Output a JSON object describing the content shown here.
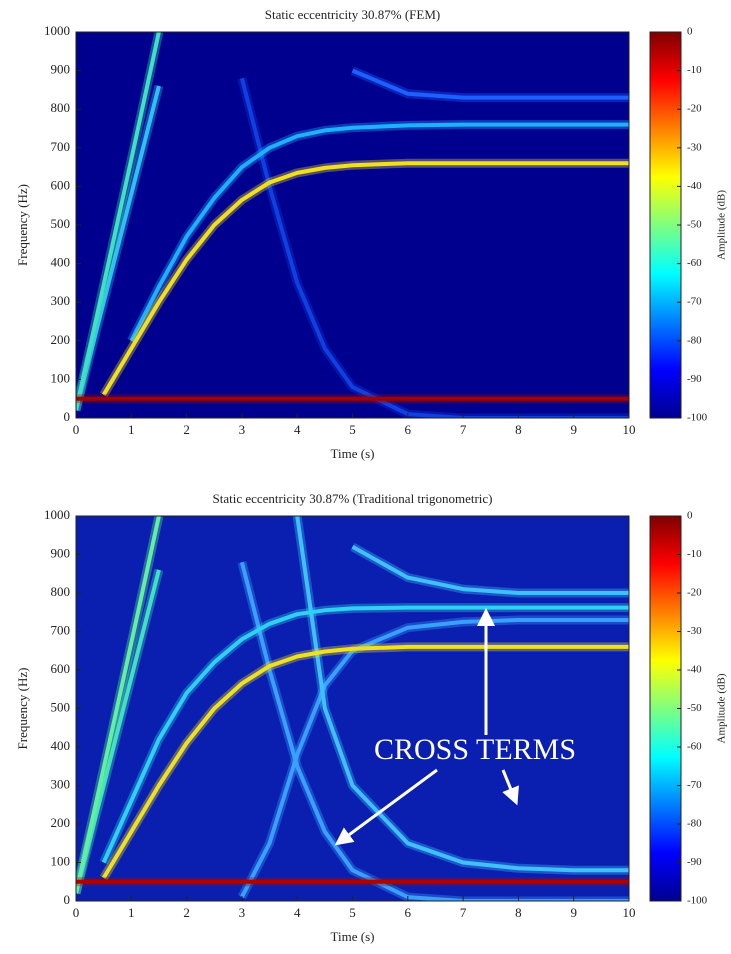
{
  "chart_data": [
    {
      "type": "spectrogram",
      "title": "Static eccentricity 30.87% (FEM)",
      "x_label": "Time (s)",
      "y_label": "Frequency (Hz)",
      "xlim": [
        0,
        10
      ],
      "xticks": [
        0,
        1,
        2,
        3,
        4,
        5,
        6,
        7,
        8,
        9,
        10
      ],
      "ylim": [
        0,
        1000
      ],
      "yticks": [
        0,
        100,
        200,
        300,
        400,
        500,
        600,
        700,
        800,
        900,
        1000
      ],
      "background": "#00008f",
      "colorbar": {
        "label": "Amplitude (dB)",
        "lim": [
          -100,
          0
        ],
        "ticks": [
          0,
          -10,
          -20,
          -30,
          -40,
          -50,
          -60,
          -70,
          -80,
          -90,
          -100
        ]
      },
      "x": [
        0,
        0.5,
        1,
        1.5,
        2,
        2.5,
        3,
        3.5,
        4,
        4.5,
        5,
        6,
        7,
        8,
        9,
        10
      ],
      "series": [
        {
          "color": "#1040e0",
          "values": [
            null,
            null,
            null,
            null,
            null,
            null,
            880,
            600,
            350,
            180,
            80,
            10,
            0,
            0,
            0,
            0
          ]
        },
        {
          "color": "#1e60ff",
          "values": [
            null,
            null,
            null,
            null,
            null,
            null,
            null,
            null,
            null,
            null,
            900,
            840,
            830,
            830,
            830,
            830
          ]
        },
        {
          "color": "#30c0f0",
          "values": [
            20,
            300,
            580,
            860,
            null,
            null,
            null,
            null,
            null,
            null,
            null,
            null,
            null,
            null,
            null,
            null
          ]
        },
        {
          "color": "#40e0c0",
          "values": [
            20,
            345,
            670,
            1000,
            null,
            null,
            null,
            null,
            null,
            null,
            null,
            null,
            null,
            null,
            null,
            null
          ]
        },
        {
          "color": "#20b0ff",
          "values": [
            null,
            null,
            200,
            340,
            470,
            570,
            650,
            700,
            730,
            745,
            752,
            758,
            760,
            760,
            760,
            760
          ]
        },
        {
          "color": "#f0e020",
          "values": [
            null,
            60,
            180,
            300,
            410,
            500,
            565,
            610,
            635,
            648,
            655,
            660,
            660,
            660,
            660,
            660
          ]
        },
        {
          "color": "#a00000",
          "values": [
            50,
            50,
            50,
            50,
            50,
            50,
            50,
            50,
            50,
            50,
            50,
            50,
            50,
            50,
            50,
            50
          ]
        }
      ]
    },
    {
      "type": "spectrogram",
      "title": "Static eccentricity 30.87% (Traditional trigonometric)",
      "x_label": "Time (s)",
      "y_label": "Frequency (Hz)",
      "xlim": [
        0,
        10
      ],
      "xticks": [
        0,
        1,
        2,
        3,
        4,
        5,
        6,
        7,
        8,
        9,
        10
      ],
      "ylim": [
        0,
        1000
      ],
      "yticks": [
        0,
        100,
        200,
        300,
        400,
        500,
        600,
        700,
        800,
        900,
        1000
      ],
      "background": "#0a1fb0",
      "colorbar": {
        "label": "Amplitude (dB)",
        "lim": [
          -100,
          0
        ],
        "ticks": [
          0,
          -10,
          -20,
          -30,
          -40,
          -50,
          -60,
          -70,
          -80,
          -90,
          -100
        ]
      },
      "annotations": [
        {
          "text": "CROSS TERMS"
        }
      ],
      "x": [
        0,
        0.5,
        1,
        1.5,
        2,
        2.5,
        3,
        3.5,
        4,
        4.5,
        5,
        6,
        7,
        8,
        9,
        10
      ],
      "series": [
        {
          "color": "#3aa0ff",
          "values": [
            null,
            null,
            null,
            null,
            null,
            null,
            880,
            600,
            350,
            180,
            80,
            10,
            0,
            0,
            0,
            0
          ]
        },
        {
          "color": "#3aa0ff",
          "values": [
            null,
            null,
            null,
            null,
            null,
            null,
            10,
            150,
            380,
            560,
            650,
            710,
            725,
            730,
            730,
            730
          ]
        },
        {
          "color": "#40c0ff",
          "values": [
            null,
            null,
            null,
            null,
            null,
            null,
            null,
            null,
            1000,
            500,
            300,
            150,
            100,
            85,
            80,
            80
          ]
        },
        {
          "color": "#40c0ff",
          "values": [
            null,
            null,
            null,
            null,
            null,
            null,
            null,
            null,
            null,
            null,
            920,
            840,
            810,
            800,
            800,
            800
          ]
        },
        {
          "color": "#40e0c0",
          "values": [
            20,
            300,
            580,
            860,
            null,
            null,
            null,
            null,
            null,
            null,
            null,
            null,
            null,
            null,
            null,
            null
          ]
        },
        {
          "color": "#60f0a0",
          "values": [
            20,
            345,
            670,
            1000,
            null,
            null,
            null,
            null,
            null,
            null,
            null,
            null,
            null,
            null,
            null,
            null
          ]
        },
        {
          "color": "#30d0f0",
          "values": [
            null,
            100,
            260,
            420,
            540,
            620,
            680,
            720,
            745,
            755,
            760,
            762,
            762,
            762,
            762,
            762
          ]
        },
        {
          "color": "#f0e020",
          "values": [
            null,
            60,
            180,
            300,
            410,
            500,
            565,
            610,
            635,
            648,
            655,
            660,
            660,
            660,
            660,
            660
          ]
        },
        {
          "color": "#b00000",
          "values": [
            50,
            50,
            50,
            50,
            50,
            50,
            50,
            50,
            50,
            50,
            50,
            50,
            50,
            50,
            50,
            50
          ]
        }
      ]
    }
  ]
}
